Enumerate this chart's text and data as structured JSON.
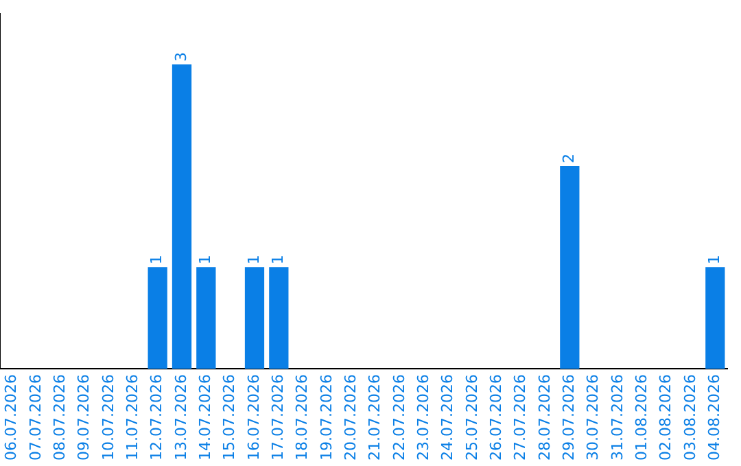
{
  "chart_data": {
    "type": "bar",
    "categories": [
      "06.07.2026",
      "07.07.2026",
      "08.07.2026",
      "09.07.2026",
      "10.07.2026",
      "11.07.2026",
      "12.07.2026",
      "13.07.2026",
      "14.07.2026",
      "15.07.2026",
      "16.07.2026",
      "17.07.2026",
      "18.07.2026",
      "19.07.2026",
      "20.07.2026",
      "21.07.2026",
      "22.07.2026",
      "23.07.2026",
      "24.07.2026",
      "25.07.2026",
      "26.07.2026",
      "27.07.2026",
      "28.07.2026",
      "29.07.2026",
      "30.07.2026",
      "31.07.2026",
      "01.08.2026",
      "02.08.2026",
      "03.08.2026",
      "04.08.2026"
    ],
    "values": [
      0,
      0,
      0,
      0,
      0,
      0,
      1,
      3,
      1,
      0,
      1,
      1,
      0,
      0,
      0,
      0,
      0,
      0,
      0,
      0,
      0,
      0,
      0,
      2,
      0,
      0,
      0,
      0,
      0,
      1
    ],
    "value_labels": [
      null,
      null,
      null,
      null,
      null,
      null,
      "1",
      "3",
      "1",
      null,
      "1",
      "1",
      null,
      null,
      null,
      null,
      null,
      null,
      null,
      null,
      null,
      null,
      null,
      "2",
      null,
      null,
      null,
      null,
      null,
      "1"
    ],
    "color": "#0a7fe6",
    "grid": false,
    "legend": false,
    "tick_labels": "x"
  }
}
